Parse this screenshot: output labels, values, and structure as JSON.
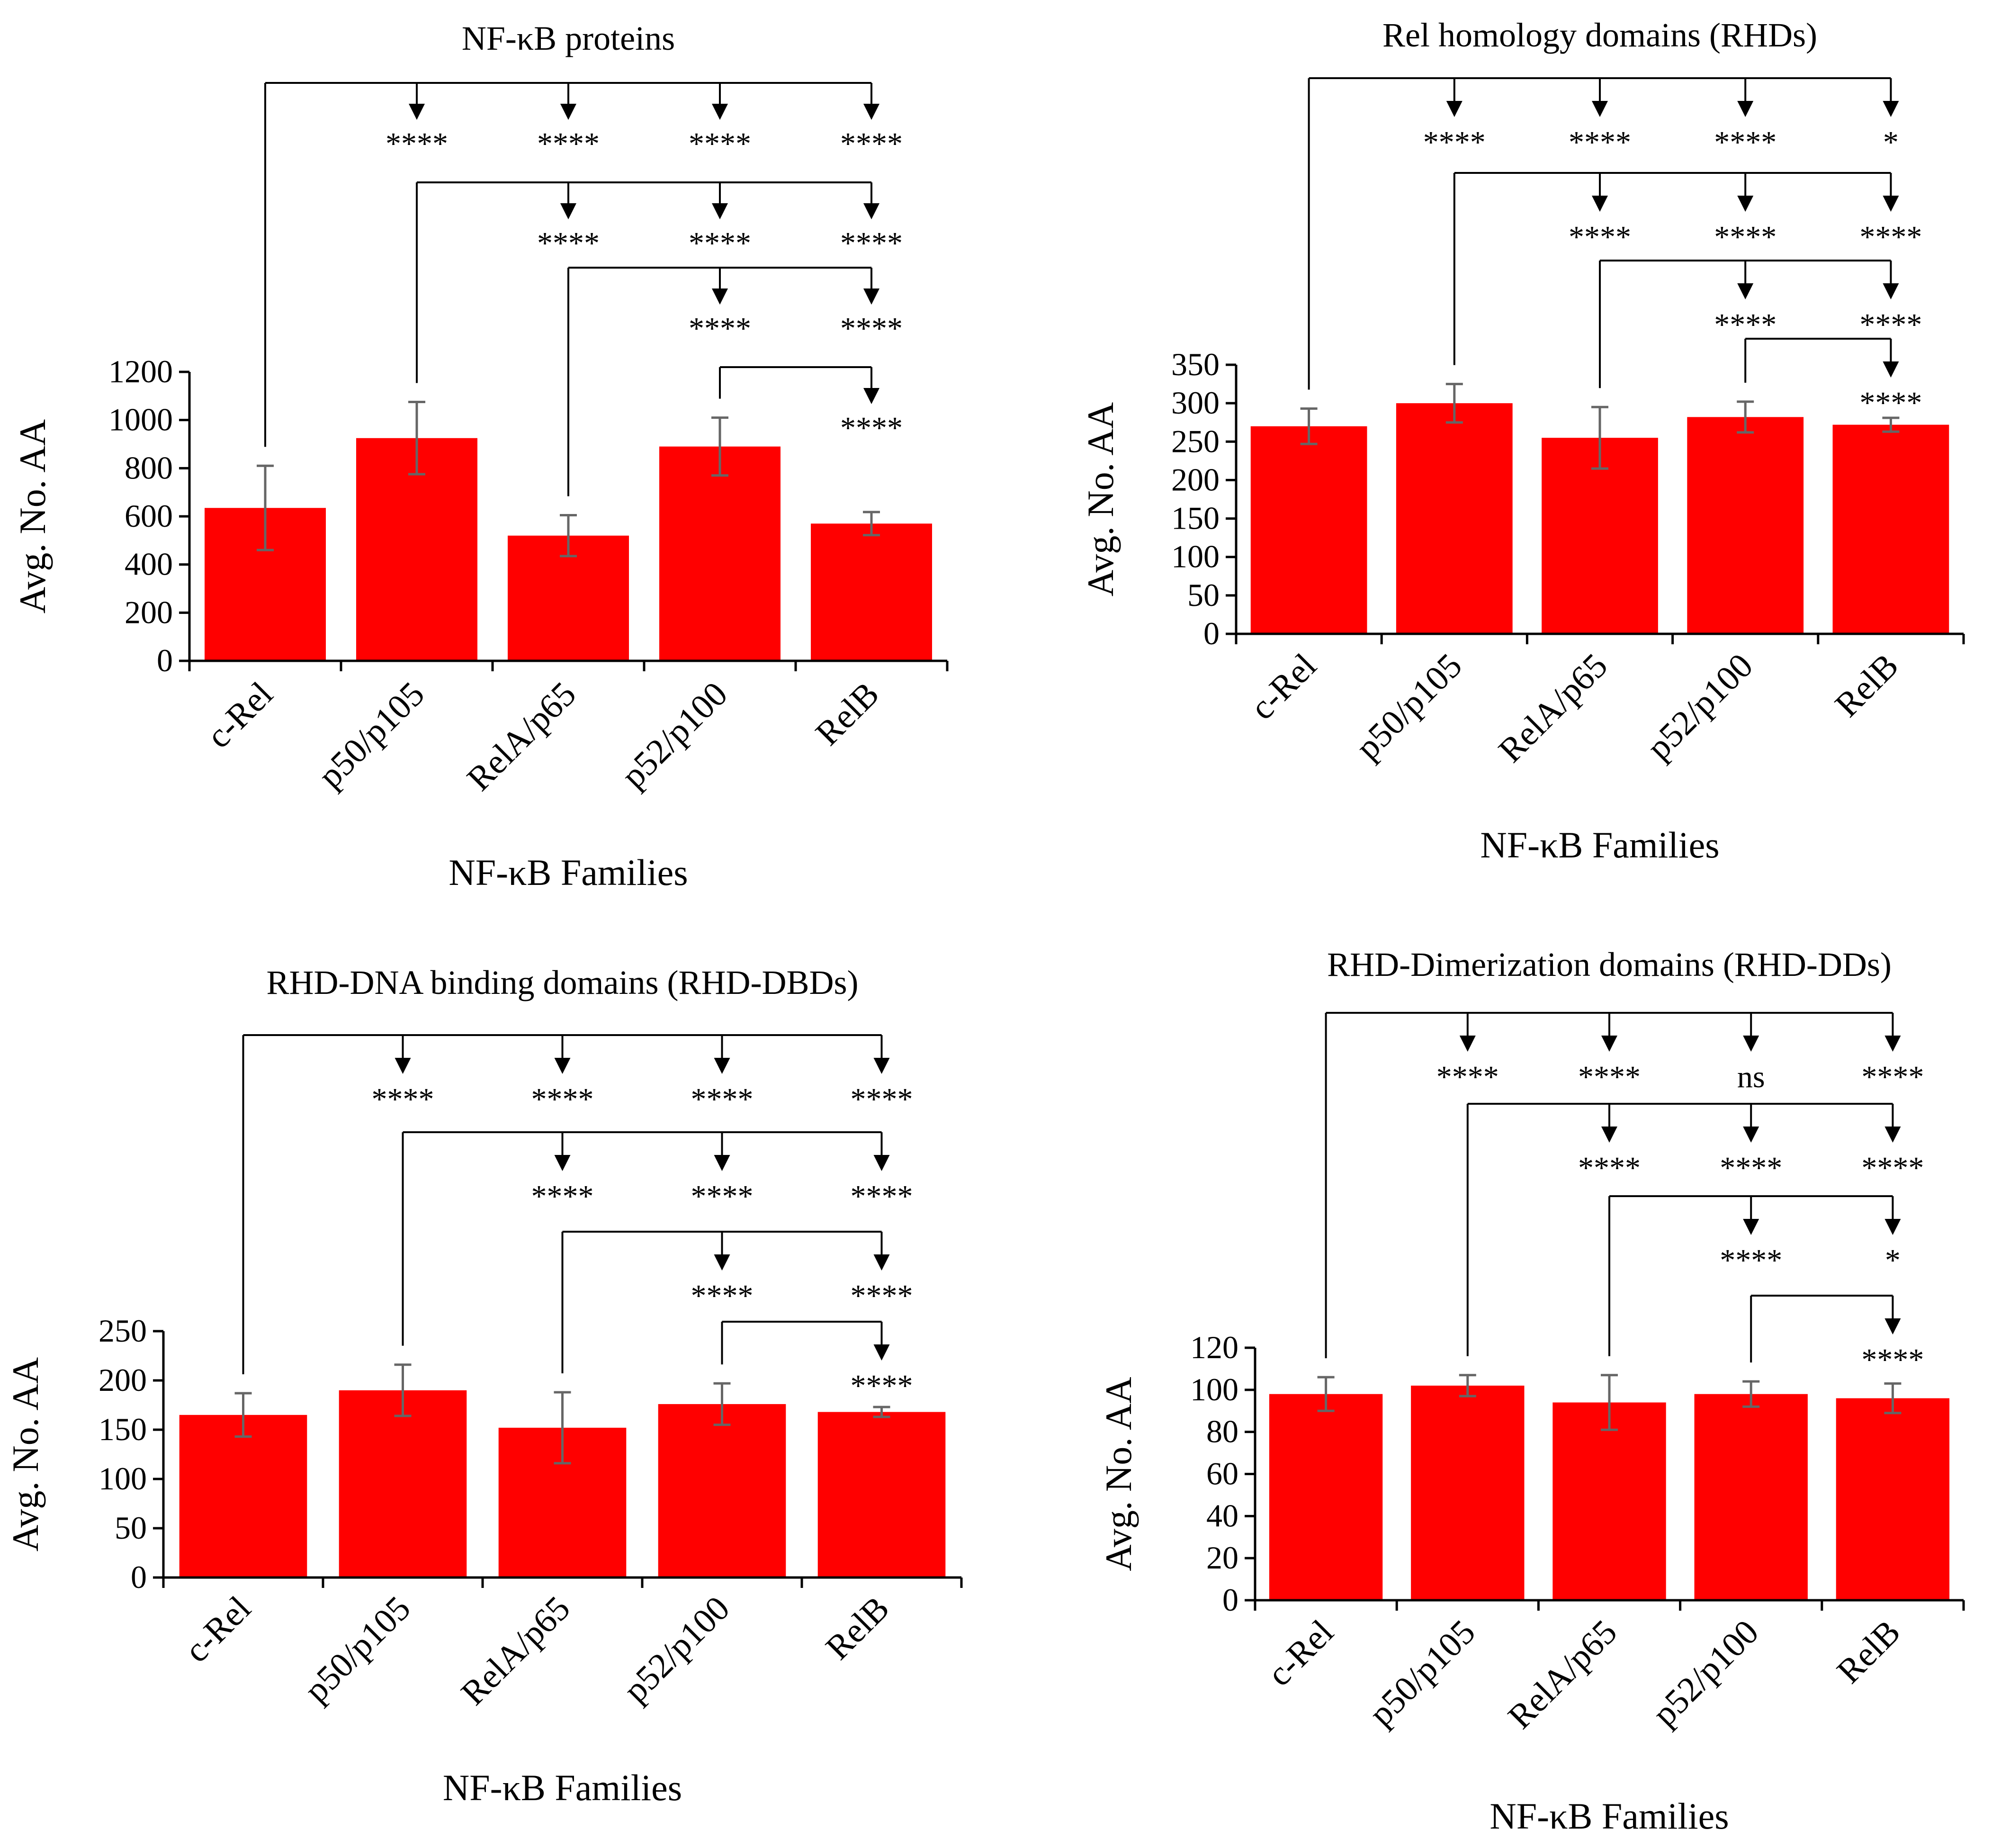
{
  "figure": {
    "colors": {
      "bar": "#FF0000",
      "error_bar": "#666666",
      "axis": "#000000",
      "bracket": "#000000"
    }
  },
  "chart_data": [
    {
      "id": "proteins",
      "type": "bar",
      "title": "NF-κB proteins",
      "xlabel": "NF-κB Families",
      "ylabel": "Avg. No. AA",
      "ylim": [
        0,
        1200
      ],
      "yticks": [
        0,
        200,
        400,
        600,
        800,
        1000,
        1200
      ],
      "categories": [
        "c-Rel",
        "p50/p105",
        "RelA/p65",
        "p52/p100",
        "RelB"
      ],
      "values": [
        635,
        925,
        520,
        890,
        570
      ],
      "errors": [
        175,
        150,
        85,
        120,
        48
      ],
      "comparisons": [
        {
          "from": 0,
          "targets": [
            1,
            2,
            3,
            4
          ],
          "labels": [
            "****",
            "****",
            "****",
            "****"
          ]
        },
        {
          "from": 1,
          "targets": [
            2,
            3,
            4
          ],
          "labels": [
            "****",
            "****",
            "****"
          ]
        },
        {
          "from": 2,
          "targets": [
            3,
            4
          ],
          "labels": [
            "****",
            "****"
          ]
        },
        {
          "from": 3,
          "targets": [
            4
          ],
          "labels": [
            "****"
          ]
        }
      ]
    },
    {
      "id": "rhds",
      "type": "bar",
      "title": "Rel homology domains (RHDs)",
      "xlabel": "NF-κB Families",
      "ylabel": "Avg. No. AA",
      "ylim": [
        0,
        350
      ],
      "yticks": [
        0,
        50,
        100,
        150,
        200,
        250,
        300,
        350
      ],
      "categories": [
        "c-Rel",
        "p50/p105",
        "RelA/p65",
        "p52/p100",
        "RelB"
      ],
      "values": [
        270,
        300,
        255,
        282,
        272
      ],
      "errors": [
        23,
        25,
        40,
        20,
        9
      ],
      "comparisons": [
        {
          "from": 0,
          "targets": [
            1,
            2,
            3,
            4
          ],
          "labels": [
            "****",
            "****",
            "****",
            "*"
          ]
        },
        {
          "from": 1,
          "targets": [
            2,
            3,
            4
          ],
          "labels": [
            "****",
            "****",
            "****"
          ]
        },
        {
          "from": 2,
          "targets": [
            3,
            4
          ],
          "labels": [
            "****",
            "****"
          ]
        },
        {
          "from": 3,
          "targets": [
            4
          ],
          "labels": [
            "****"
          ]
        }
      ]
    },
    {
      "id": "dbds",
      "type": "bar",
      "title": "RHD-DNA binding domains (RHD-DBDs)",
      "xlabel": "NF-κB Families",
      "ylabel": "Avg. No. AA",
      "ylim": [
        0,
        250
      ],
      "yticks": [
        0,
        50,
        100,
        150,
        200,
        250
      ],
      "categories": [
        "c-Rel",
        "p50/p105",
        "RelA/p65",
        "p52/p100",
        "RelB"
      ],
      "values": [
        165,
        190,
        152,
        176,
        168
      ],
      "errors": [
        22,
        26,
        36,
        21,
        5
      ],
      "comparisons": [
        {
          "from": 0,
          "targets": [
            1,
            2,
            3,
            4
          ],
          "labels": [
            "****",
            "****",
            "****",
            "****"
          ]
        },
        {
          "from": 1,
          "targets": [
            2,
            3,
            4
          ],
          "labels": [
            "****",
            "****",
            "****"
          ]
        },
        {
          "from": 2,
          "targets": [
            3,
            4
          ],
          "labels": [
            "****",
            "****"
          ]
        },
        {
          "from": 3,
          "targets": [
            4
          ],
          "labels": [
            "****"
          ]
        }
      ]
    },
    {
      "id": "dds",
      "type": "bar",
      "title": "RHD-Dimerization domains (RHD-DDs)",
      "xlabel": "NF-κB Families",
      "ylabel": "Avg. No. AA",
      "ylim": [
        0,
        120
      ],
      "yticks": [
        0,
        20,
        40,
        60,
        80,
        100,
        120
      ],
      "categories": [
        "c-Rel",
        "p50/p105",
        "RelA/p65",
        "p52/p100",
        "RelB"
      ],
      "values": [
        98,
        102,
        94,
        98,
        96
      ],
      "errors": [
        8,
        5,
        13,
        6,
        7
      ],
      "comparisons": [
        {
          "from": 0,
          "targets": [
            1,
            2,
            3,
            4
          ],
          "labels": [
            "****",
            "****",
            "ns",
            "****"
          ]
        },
        {
          "from": 1,
          "targets": [
            2,
            3,
            4
          ],
          "labels": [
            "****",
            "****",
            "****"
          ]
        },
        {
          "from": 2,
          "targets": [
            3,
            4
          ],
          "labels": [
            "****",
            "*"
          ]
        },
        {
          "from": 3,
          "targets": [
            4
          ],
          "labels": [
            "****"
          ]
        }
      ]
    }
  ]
}
